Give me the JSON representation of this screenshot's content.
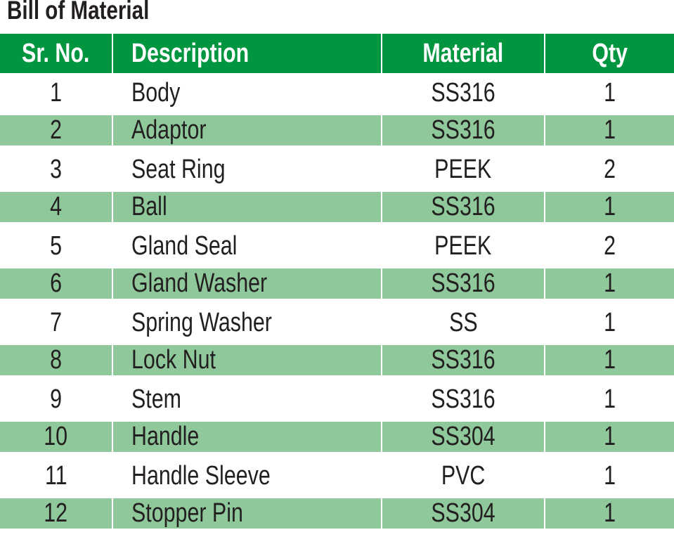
{
  "title": "Bill of Material",
  "colors": {
    "header": "#00963f",
    "alt_row": "#8fc89a"
  },
  "columns": [
    "Sr. No.",
    "Description",
    "Material",
    "Qty"
  ],
  "rows": [
    [
      "1",
      "Body",
      "SS316",
      "1"
    ],
    [
      "2",
      "Adaptor",
      "SS316",
      "1"
    ],
    [
      "3",
      "Seat Ring",
      "PEEK",
      "2"
    ],
    [
      "4",
      "Ball",
      "SS316",
      "1"
    ],
    [
      "5",
      "Gland Seal",
      "PEEK",
      "2"
    ],
    [
      "6",
      "Gland Washer",
      "SS316",
      "1"
    ],
    [
      "7",
      "Spring Washer",
      "SS",
      "1"
    ],
    [
      "8",
      "Lock Nut",
      "SS316",
      "1"
    ],
    [
      "9",
      "Stem",
      "SS316",
      "1"
    ],
    [
      "10",
      "Handle",
      "SS304",
      "1"
    ],
    [
      "11",
      "Handle Sleeve",
      "PVC",
      "1"
    ],
    [
      "12",
      "Stopper Pin",
      "SS304",
      "1"
    ]
  ]
}
